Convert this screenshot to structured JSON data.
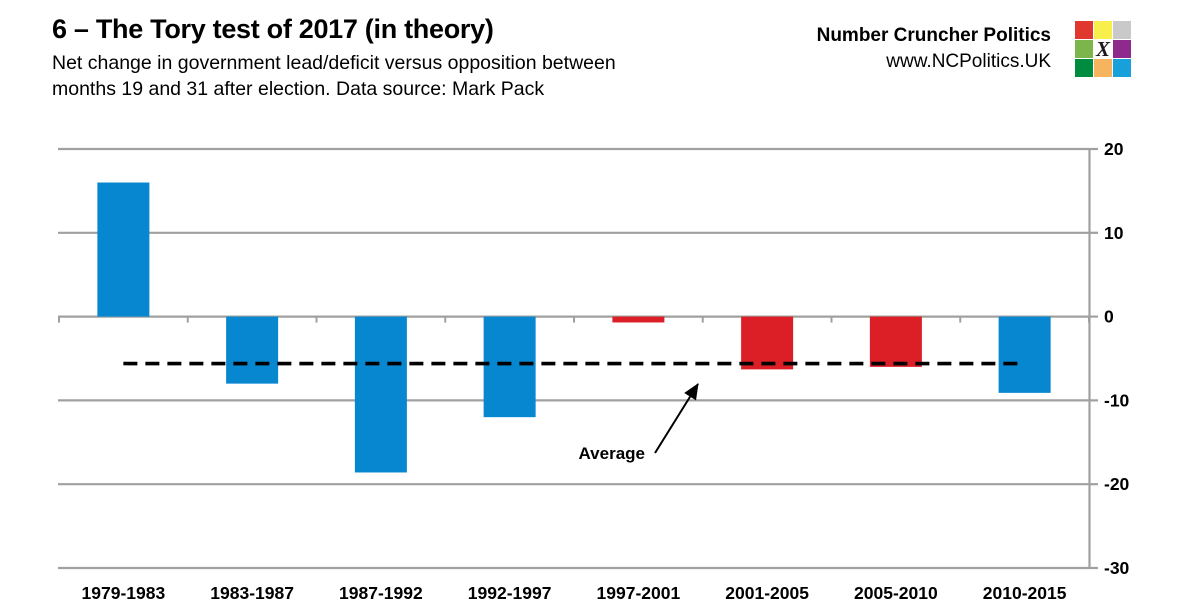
{
  "header": {
    "title": "6 – The Tory test of 2017 (in theory)",
    "subtitle_line1": "Net change in government lead/deficit versus opposition between",
    "subtitle_line2": "months 19 and 31 after election. Data source: Mark Pack"
  },
  "brand": {
    "name": "Number Cruncher Politics",
    "url": "www.NCPolitics.UK",
    "logo": {
      "mark": "X",
      "cells": [
        "#e0382e",
        "#f8ee4c",
        "#c9c9c9",
        "#7cb54b",
        "#ffffff",
        "#8e2a8e",
        "#008c3e",
        "#f6b45f",
        "#18a0da"
      ]
    }
  },
  "chart_data": {
    "type": "bar",
    "title": "6 – The Tory test of 2017 (in theory)",
    "categories": [
      "1979-1983",
      "1983-1987",
      "1987-1992",
      "1992-1997",
      "1997-2001",
      "2001-2005",
      "2005-2010",
      "2010-2015"
    ],
    "values": [
      16,
      -8,
      -18.6,
      -12,
      -0.7,
      -6.3,
      -6,
      -9.1
    ],
    "bar_colors": [
      "#0687d0",
      "#0687d0",
      "#0687d0",
      "#0687d0",
      "#dc1f26",
      "#dc1f26",
      "#dc1f26",
      "#0687d0"
    ],
    "average": -5.6,
    "annotation_label": "Average",
    "yticks": [
      20,
      10,
      0,
      -10,
      -20,
      -30
    ],
    "ylim": [
      -30,
      20
    ],
    "axis_side": "right",
    "grid": true,
    "grid_color": "#a0a0a0",
    "average_line_color": "#000000",
    "label_color": "#000000"
  }
}
